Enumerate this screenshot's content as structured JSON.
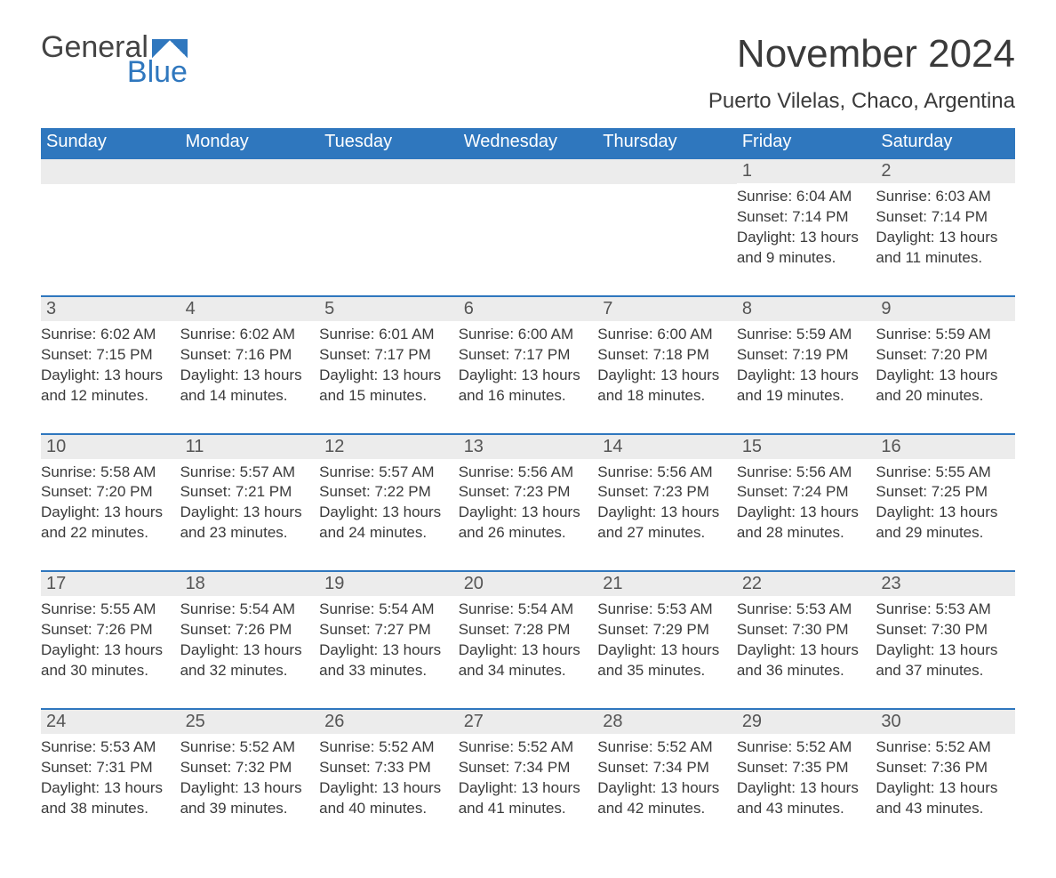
{
  "logo": {
    "line1": "General",
    "line2": "Blue"
  },
  "title": {
    "month": "November 2024",
    "location": "Puerto Vilelas, Chaco, Argentina"
  },
  "colors": {
    "accent": "#2f77be",
    "header_text": "#ffffff",
    "daynum_bg": "#ececec",
    "body_text": "#3a3a3a",
    "background": "#ffffff"
  },
  "calendar": {
    "day_headers": [
      "Sunday",
      "Monday",
      "Tuesday",
      "Wednesday",
      "Thursday",
      "Friday",
      "Saturday"
    ],
    "weeks": [
      [
        null,
        null,
        null,
        null,
        null,
        {
          "n": "1",
          "sunrise": "Sunrise: 6:04 AM",
          "sunset": "Sunset: 7:14 PM",
          "daylight": "Daylight: 13 hours and 9 minutes."
        },
        {
          "n": "2",
          "sunrise": "Sunrise: 6:03 AM",
          "sunset": "Sunset: 7:14 PM",
          "daylight": "Daylight: 13 hours and 11 minutes."
        }
      ],
      [
        {
          "n": "3",
          "sunrise": "Sunrise: 6:02 AM",
          "sunset": "Sunset: 7:15 PM",
          "daylight": "Daylight: 13 hours and 12 minutes."
        },
        {
          "n": "4",
          "sunrise": "Sunrise: 6:02 AM",
          "sunset": "Sunset: 7:16 PM",
          "daylight": "Daylight: 13 hours and 14 minutes."
        },
        {
          "n": "5",
          "sunrise": "Sunrise: 6:01 AM",
          "sunset": "Sunset: 7:17 PM",
          "daylight": "Daylight: 13 hours and 15 minutes."
        },
        {
          "n": "6",
          "sunrise": "Sunrise: 6:00 AM",
          "sunset": "Sunset: 7:17 PM",
          "daylight": "Daylight: 13 hours and 16 minutes."
        },
        {
          "n": "7",
          "sunrise": "Sunrise: 6:00 AM",
          "sunset": "Sunset: 7:18 PM",
          "daylight": "Daylight: 13 hours and 18 minutes."
        },
        {
          "n": "8",
          "sunrise": "Sunrise: 5:59 AM",
          "sunset": "Sunset: 7:19 PM",
          "daylight": "Daylight: 13 hours and 19 minutes."
        },
        {
          "n": "9",
          "sunrise": "Sunrise: 5:59 AM",
          "sunset": "Sunset: 7:20 PM",
          "daylight": "Daylight: 13 hours and 20 minutes."
        }
      ],
      [
        {
          "n": "10",
          "sunrise": "Sunrise: 5:58 AM",
          "sunset": "Sunset: 7:20 PM",
          "daylight": "Daylight: 13 hours and 22 minutes."
        },
        {
          "n": "11",
          "sunrise": "Sunrise: 5:57 AM",
          "sunset": "Sunset: 7:21 PM",
          "daylight": "Daylight: 13 hours and 23 minutes."
        },
        {
          "n": "12",
          "sunrise": "Sunrise: 5:57 AM",
          "sunset": "Sunset: 7:22 PM",
          "daylight": "Daylight: 13 hours and 24 minutes."
        },
        {
          "n": "13",
          "sunrise": "Sunrise: 5:56 AM",
          "sunset": "Sunset: 7:23 PM",
          "daylight": "Daylight: 13 hours and 26 minutes."
        },
        {
          "n": "14",
          "sunrise": "Sunrise: 5:56 AM",
          "sunset": "Sunset: 7:23 PM",
          "daylight": "Daylight: 13 hours and 27 minutes."
        },
        {
          "n": "15",
          "sunrise": "Sunrise: 5:56 AM",
          "sunset": "Sunset: 7:24 PM",
          "daylight": "Daylight: 13 hours and 28 minutes."
        },
        {
          "n": "16",
          "sunrise": "Sunrise: 5:55 AM",
          "sunset": "Sunset: 7:25 PM",
          "daylight": "Daylight: 13 hours and 29 minutes."
        }
      ],
      [
        {
          "n": "17",
          "sunrise": "Sunrise: 5:55 AM",
          "sunset": "Sunset: 7:26 PM",
          "daylight": "Daylight: 13 hours and 30 minutes."
        },
        {
          "n": "18",
          "sunrise": "Sunrise: 5:54 AM",
          "sunset": "Sunset: 7:26 PM",
          "daylight": "Daylight: 13 hours and 32 minutes."
        },
        {
          "n": "19",
          "sunrise": "Sunrise: 5:54 AM",
          "sunset": "Sunset: 7:27 PM",
          "daylight": "Daylight: 13 hours and 33 minutes."
        },
        {
          "n": "20",
          "sunrise": "Sunrise: 5:54 AM",
          "sunset": "Sunset: 7:28 PM",
          "daylight": "Daylight: 13 hours and 34 minutes."
        },
        {
          "n": "21",
          "sunrise": "Sunrise: 5:53 AM",
          "sunset": "Sunset: 7:29 PM",
          "daylight": "Daylight: 13 hours and 35 minutes."
        },
        {
          "n": "22",
          "sunrise": "Sunrise: 5:53 AM",
          "sunset": "Sunset: 7:30 PM",
          "daylight": "Daylight: 13 hours and 36 minutes."
        },
        {
          "n": "23",
          "sunrise": "Sunrise: 5:53 AM",
          "sunset": "Sunset: 7:30 PM",
          "daylight": "Daylight: 13 hours and 37 minutes."
        }
      ],
      [
        {
          "n": "24",
          "sunrise": "Sunrise: 5:53 AM",
          "sunset": "Sunset: 7:31 PM",
          "daylight": "Daylight: 13 hours and 38 minutes."
        },
        {
          "n": "25",
          "sunrise": "Sunrise: 5:52 AM",
          "sunset": "Sunset: 7:32 PM",
          "daylight": "Daylight: 13 hours and 39 minutes."
        },
        {
          "n": "26",
          "sunrise": "Sunrise: 5:52 AM",
          "sunset": "Sunset: 7:33 PM",
          "daylight": "Daylight: 13 hours and 40 minutes."
        },
        {
          "n": "27",
          "sunrise": "Sunrise: 5:52 AM",
          "sunset": "Sunset: 7:34 PM",
          "daylight": "Daylight: 13 hours and 41 minutes."
        },
        {
          "n": "28",
          "sunrise": "Sunrise: 5:52 AM",
          "sunset": "Sunset: 7:34 PM",
          "daylight": "Daylight: 13 hours and 42 minutes."
        },
        {
          "n": "29",
          "sunrise": "Sunrise: 5:52 AM",
          "sunset": "Sunset: 7:35 PM",
          "daylight": "Daylight: 13 hours and 43 minutes."
        },
        {
          "n": "30",
          "sunrise": "Sunrise: 5:52 AM",
          "sunset": "Sunset: 7:36 PM",
          "daylight": "Daylight: 13 hours and 43 minutes."
        }
      ]
    ]
  }
}
